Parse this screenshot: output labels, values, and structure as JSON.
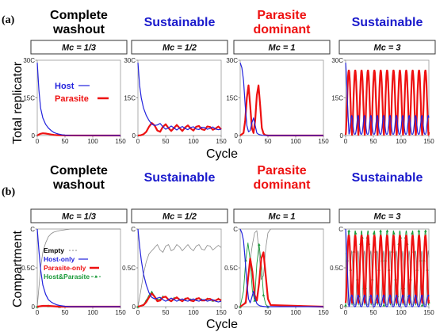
{
  "figure": {
    "panel_a_label": "(a)",
    "panel_b_label": "(b)",
    "row_a_ylabel": "Total replicator",
    "row_b_ylabel": "Compartment",
    "xlabel": "Cycle"
  },
  "columns": [
    {
      "outcome": "Complete washout",
      "outcome_lines": [
        "Complete",
        "washout"
      ],
      "color": "#000000",
      "mc": "Mc = 1/3"
    },
    {
      "outcome": "Sustainable",
      "outcome_lines": [
        "Sustainable"
      ],
      "color": "#1a1acc",
      "mc": "Mc = 1/2"
    },
    {
      "outcome": "Parasite dominant",
      "outcome_lines": [
        "Parasite",
        "dominant"
      ],
      "color": "#ee1111",
      "mc": "Mc = 1"
    },
    {
      "outcome": "Sustainable",
      "outcome_lines": [
        "Sustainable"
      ],
      "color": "#1a1acc",
      "mc": "Mc = 3"
    }
  ],
  "colors": {
    "host": "#2222dd",
    "parasite": "#ee1111",
    "empty": "#888888",
    "both": "#1a9a3a"
  },
  "chart_data": [
    {
      "type": "line",
      "panel": "a",
      "column": 1,
      "xlabel": "Cycle",
      "ylabel": "Total replicator",
      "xlim": [
        0,
        150
      ],
      "ylim": [
        0,
        30
      ],
      "xticks": [
        "0",
        "50",
        "100",
        "150"
      ],
      "yticks": [
        "0",
        "15C",
        "30C"
      ],
      "legend": [
        "Host",
        "Parasite"
      ],
      "series": [
        {
          "name": "Host",
          "x": [
            0,
            3,
            6,
            10,
            15,
            20,
            25,
            30,
            35,
            40,
            45,
            50,
            60,
            150
          ],
          "values": [
            29,
            18,
            11,
            7,
            4.5,
            3,
            2,
            1.2,
            0.8,
            0.5,
            0.3,
            0.15,
            0.05,
            0
          ]
        },
        {
          "name": "Parasite",
          "x": [
            0,
            3,
            6,
            10,
            15,
            20,
            25,
            30,
            35,
            40,
            50,
            150
          ],
          "values": [
            0,
            0.4,
            0.7,
            0.9,
            0.8,
            0.6,
            0.4,
            0.25,
            0.15,
            0.08,
            0.02,
            0
          ]
        }
      ]
    },
    {
      "type": "line",
      "panel": "a",
      "column": 2,
      "xlim": [
        0,
        150
      ],
      "ylim": [
        0,
        30
      ],
      "xticks": [
        "0",
        "50",
        "100",
        "150"
      ],
      "yticks": [
        "0",
        "15C",
        "30C"
      ],
      "series": [
        {
          "name": "Host",
          "x": [
            0,
            3,
            6,
            10,
            15,
            20,
            25,
            30,
            35,
            40,
            45,
            50,
            55,
            60,
            65,
            70,
            75,
            80,
            85,
            90,
            95,
            100,
            105,
            110,
            115,
            120,
            125,
            130,
            135,
            140,
            145,
            150
          ],
          "values": [
            29,
            20,
            15,
            11,
            8,
            6,
            4.5,
            4,
            4.2,
            4.8,
            3.5,
            2.5,
            3,
            3.8,
            3,
            2.2,
            3,
            3.6,
            2.8,
            2.3,
            3.2,
            3.5,
            2.6,
            2.4,
            3.3,
            3.2,
            2.5,
            2.8,
            3.4,
            2.6,
            2.3,
            2.6
          ]
        },
        {
          "name": "Parasite",
          "x": [
            0,
            5,
            10,
            15,
            20,
            25,
            30,
            35,
            40,
            45,
            50,
            55,
            60,
            65,
            70,
            75,
            80,
            85,
            90,
            95,
            100,
            105,
            110,
            115,
            120,
            125,
            130,
            135,
            140,
            145,
            150
          ],
          "values": [
            0,
            0.1,
            0.5,
            1.5,
            3.5,
            5,
            4,
            2,
            1.5,
            3.5,
            4.5,
            3,
            1.8,
            3,
            4.2,
            3,
            1.8,
            3.2,
            4,
            2.8,
            2,
            3.5,
            3.8,
            2.5,
            2.2,
            3.6,
            3.4,
            2.3,
            2.8,
            3.6,
            2.4
          ]
        }
      ]
    },
    {
      "type": "line",
      "panel": "a",
      "column": 3,
      "xlim": [
        0,
        150
      ],
      "ylim": [
        0,
        30
      ],
      "xticks": [
        "0",
        "50",
        "100",
        "150"
      ],
      "yticks": [
        "0",
        "15C",
        "30C"
      ],
      "series": [
        {
          "name": "Host",
          "x": [
            0,
            3,
            6,
            9,
            12,
            15,
            18,
            21,
            24,
            27,
            30,
            33,
            36,
            40,
            45,
            50,
            150
          ],
          "values": [
            29,
            27,
            22,
            12,
            4,
            1.5,
            2,
            5,
            7,
            4,
            1,
            0.5,
            0.3,
            0.1,
            0.05,
            0,
            0
          ]
        },
        {
          "name": "Parasite",
          "x": [
            0,
            6,
            9,
            12,
            15,
            18,
            21,
            24,
            27,
            30,
            33,
            36,
            39,
            42,
            45,
            50,
            150
          ],
          "values": [
            0,
            1,
            6,
            15,
            20,
            12,
            3,
            1,
            6,
            16,
            20,
            12,
            3,
            0.8,
            0.2,
            0,
            0
          ]
        }
      ]
    },
    {
      "type": "line",
      "panel": "a",
      "column": 4,
      "xlim": [
        0,
        150
      ],
      "ylim": [
        0,
        30
      ],
      "xticks": [
        "0",
        "50",
        "100",
        "150"
      ],
      "yticks": [
        "0",
        "15C",
        "30C"
      ],
      "series": [
        {
          "name": "Host",
          "period": 11.5,
          "baseline": 0.5,
          "peak": 8,
          "start": 29
        },
        {
          "name": "Parasite",
          "period": 11.5,
          "baseline": 0.3,
          "peak": 26
        }
      ]
    },
    {
      "type": "line",
      "panel": "b",
      "column": 1,
      "xlabel": "Cycle",
      "ylabel": "Compartment",
      "xlim": [
        0,
        150
      ],
      "ylim": [
        0,
        1
      ],
      "xticks": [
        "0",
        "50",
        "100",
        "150"
      ],
      "yticks": [
        "0",
        "0.5C",
        "C"
      ],
      "legend": [
        "Empty",
        "Host-only",
        "Parasite-only",
        "Host&Parasite"
      ],
      "series": [
        {
          "name": "Empty",
          "x": [
            0,
            3,
            6,
            10,
            15,
            20,
            25,
            30,
            35,
            40,
            50,
            60,
            150
          ],
          "values": [
            0,
            0.25,
            0.5,
            0.7,
            0.82,
            0.9,
            0.94,
            0.96,
            0.97,
            0.98,
            0.99,
            1,
            1
          ]
        },
        {
          "name": "Host-only",
          "x": [
            0,
            3,
            6,
            10,
            15,
            20,
            25,
            30,
            35,
            40,
            50,
            60,
            150
          ],
          "values": [
            1,
            0.72,
            0.48,
            0.28,
            0.16,
            0.09,
            0.06,
            0.04,
            0.025,
            0.015,
            0.005,
            0,
            0
          ]
        },
        {
          "name": "Parasite-only",
          "x": [
            0,
            10,
            20,
            30,
            40,
            150
          ],
          "values": [
            0,
            0.01,
            0.01,
            0.005,
            0,
            0
          ]
        },
        {
          "name": "Host&Parasite",
          "x": [
            0,
            10,
            20,
            30,
            40,
            150
          ],
          "values": [
            0,
            0.01,
            0.01,
            0.005,
            0,
            0
          ]
        }
      ]
    },
    {
      "type": "line",
      "panel": "b",
      "column": 2,
      "xlim": [
        0,
        150
      ],
      "ylim": [
        0,
        1
      ],
      "xticks": [
        "0",
        "50",
        "100",
        "150"
      ],
      "yticks": [
        "0",
        "0.5C",
        "C"
      ],
      "series": [
        {
          "name": "Empty",
          "x": [
            0,
            5,
            10,
            15,
            20,
            25,
            30,
            35,
            40,
            45,
            50,
            55,
            60,
            65,
            70,
            75,
            80,
            85,
            90,
            95,
            100,
            105,
            110,
            115,
            120,
            125,
            130,
            135,
            140,
            145,
            150
          ],
          "values": [
            0,
            0.2,
            0.42,
            0.58,
            0.68,
            0.72,
            0.76,
            0.8,
            0.73,
            0.7,
            0.78,
            0.8,
            0.72,
            0.74,
            0.8,
            0.77,
            0.72,
            0.76,
            0.8,
            0.75,
            0.72,
            0.78,
            0.8,
            0.74,
            0.73,
            0.79,
            0.78,
            0.73,
            0.76,
            0.79,
            0.76
          ]
        },
        {
          "name": "Host-only",
          "x": [
            0,
            3,
            6,
            10,
            15,
            20,
            25,
            30,
            35,
            40,
            45,
            50,
            55,
            60,
            65,
            70,
            75,
            80,
            85,
            90,
            95,
            100,
            105,
            110,
            115,
            120,
            125,
            130,
            135,
            140,
            145,
            150
          ],
          "values": [
            1,
            0.78,
            0.6,
            0.42,
            0.28,
            0.18,
            0.12,
            0.1,
            0.11,
            0.12,
            0.09,
            0.07,
            0.09,
            0.11,
            0.09,
            0.07,
            0.09,
            0.1,
            0.08,
            0.07,
            0.09,
            0.1,
            0.08,
            0.07,
            0.09,
            0.09,
            0.07,
            0.08,
            0.09,
            0.07,
            0.06,
            0.07
          ]
        },
        {
          "name": "Parasite-only",
          "x": [
            0,
            10,
            15,
            20,
            25,
            30,
            35,
            40,
            45,
            50,
            55,
            60,
            65,
            70,
            75,
            80,
            85,
            90,
            95,
            100,
            105,
            110,
            115,
            120,
            125,
            130,
            135,
            140,
            145,
            150
          ],
          "values": [
            0,
            0.02,
            0.06,
            0.12,
            0.17,
            0.13,
            0.07,
            0.08,
            0.12,
            0.13,
            0.09,
            0.07,
            0.1,
            0.12,
            0.09,
            0.07,
            0.1,
            0.11,
            0.08,
            0.07,
            0.1,
            0.11,
            0.08,
            0.08,
            0.1,
            0.1,
            0.08,
            0.08,
            0.1,
            0.08
          ]
        },
        {
          "name": "Host&Parasite",
          "x": [
            0,
            10,
            15,
            20,
            25,
            30,
            35,
            40,
            45,
            50,
            55,
            60,
            65,
            70,
            75,
            80,
            85,
            90,
            95,
            100,
            105,
            110,
            115,
            120,
            125,
            130,
            135,
            140,
            145,
            150
          ],
          "values": [
            0,
            0.03,
            0.08,
            0.15,
            0.19,
            0.14,
            0.09,
            0.1,
            0.13,
            0.12,
            0.09,
            0.08,
            0.11,
            0.12,
            0.09,
            0.08,
            0.1,
            0.11,
            0.09,
            0.08,
            0.1,
            0.11,
            0.09,
            0.08,
            0.1,
            0.1,
            0.08,
            0.08,
            0.1,
            0.09
          ]
        }
      ]
    },
    {
      "type": "line",
      "panel": "b",
      "column": 3,
      "xlim": [
        0,
        150
      ],
      "ylim": [
        0,
        1
      ],
      "xticks": [
        "0",
        "50",
        "100",
        "150"
      ],
      "yticks": [
        "0",
        "0.5C",
        "C"
      ],
      "series": [
        {
          "name": "Empty",
          "x": [
            0,
            5,
            10,
            14,
            18,
            22,
            26,
            30,
            34,
            38,
            42,
            46,
            50,
            55,
            150
          ],
          "values": [
            0,
            0.02,
            0.08,
            0.3,
            0.6,
            0.8,
            0.95,
            0.98,
            0.7,
            0.35,
            0.4,
            0.75,
            0.95,
            1,
            1
          ]
        },
        {
          "name": "Host-only",
          "x": [
            0,
            3,
            6,
            9,
            12,
            15,
            18,
            21,
            24,
            27,
            30,
            33,
            36,
            40,
            45,
            50,
            150
          ],
          "values": [
            1,
            0.95,
            0.85,
            0.6,
            0.3,
            0.1,
            0.05,
            0.12,
            0.2,
            0.1,
            0.04,
            0.02,
            0.01,
            0.005,
            0,
            0,
            0
          ]
        },
        {
          "name": "Parasite-only",
          "x": [
            0,
            10,
            14,
            18,
            22,
            26,
            30,
            34,
            38,
            42,
            46,
            50,
            55,
            150
          ],
          "values": [
            0,
            0.05,
            0.35,
            0.62,
            0.45,
            0.15,
            0.08,
            0.3,
            0.62,
            0.7,
            0.4,
            0.1,
            0.02,
            0
          ]
        },
        {
          "name": "Host&Parasite",
          "x": [
            0,
            6,
            10,
            14,
            18,
            22,
            26,
            30,
            34,
            38,
            42,
            46,
            50,
            150
          ],
          "values": [
            0,
            0.2,
            0.6,
            0.82,
            0.6,
            0.2,
            0.08,
            0.55,
            0.8,
            0.55,
            0.15,
            0.03,
            0,
            0
          ]
        }
      ]
    },
    {
      "type": "line",
      "panel": "b",
      "column": 4,
      "xlim": [
        0,
        150
      ],
      "ylim": [
        0,
        1
      ],
      "xticks": [
        "0",
        "50",
        "100",
        "150"
      ],
      "yticks": [
        "0",
        "0.5C",
        "C"
      ],
      "series": [
        {
          "name": "Empty",
          "period": 11.5,
          "baseline": 0.02,
          "peak": 0.72
        },
        {
          "name": "Host-only",
          "period": 11.5,
          "baseline": 0.0,
          "peak": 0.15,
          "start": 1.0
        },
        {
          "name": "Parasite-only",
          "period": 11.5,
          "baseline": 0.05,
          "peak": 0.92
        },
        {
          "name": "Host&Parasite",
          "period": 11.5,
          "baseline": 0.02,
          "peak": 0.98
        }
      ]
    }
  ]
}
